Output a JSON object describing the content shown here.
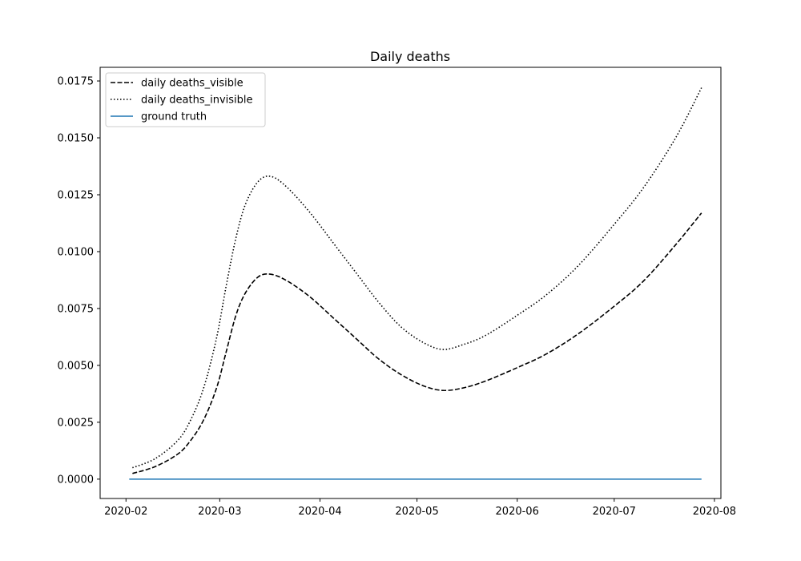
{
  "chart_data": {
    "type": "line",
    "title": "Daily deaths",
    "xlabel": "",
    "ylabel": "",
    "x_axis": {
      "type": "date",
      "range": [
        "2020-01-24",
        "2020-08-03"
      ],
      "ticks": [
        {
          "date": "2020-02-01",
          "label": "2020-02"
        },
        {
          "date": "2020-03-01",
          "label": "2020-03"
        },
        {
          "date": "2020-04-01",
          "label": "2020-04"
        },
        {
          "date": "2020-05-01",
          "label": "2020-05"
        },
        {
          "date": "2020-06-01",
          "label": "2020-06"
        },
        {
          "date": "2020-07-01",
          "label": "2020-07"
        },
        {
          "date": "2020-08-01",
          "label": "2020-08"
        }
      ]
    },
    "y_axis": {
      "range": [
        -0.00085,
        0.0181
      ],
      "ticks": [
        {
          "value": 0,
          "label": "0.0000"
        },
        {
          "value": 0.0025,
          "label": "0.0025"
        },
        {
          "value": 0.005,
          "label": "0.0050"
        },
        {
          "value": 0.0075,
          "label": "0.0075"
        },
        {
          "value": 0.01,
          "label": "0.0100"
        },
        {
          "value": 0.0125,
          "label": "0.0125"
        },
        {
          "value": 0.015,
          "label": "0.0150"
        },
        {
          "value": 0.0175,
          "label": "0.0175"
        }
      ]
    },
    "grid": false,
    "legend_position": "top-left",
    "series": [
      {
        "name": "daily deaths_visible",
        "color": "#000000",
        "style": "dashed",
        "points": [
          [
            "2020-02-03",
            0.00025
          ],
          [
            "2020-02-10",
            0.00055
          ],
          [
            "2020-02-17",
            0.0011
          ],
          [
            "2020-02-21",
            0.0017
          ],
          [
            "2020-02-25",
            0.0026
          ],
          [
            "2020-02-29",
            0.004
          ],
          [
            "2020-03-03",
            0.0056
          ],
          [
            "2020-03-06",
            0.0072
          ],
          [
            "2020-03-09",
            0.0082
          ],
          [
            "2020-03-13",
            0.0089
          ],
          [
            "2020-03-17",
            0.009
          ],
          [
            "2020-03-22",
            0.0087
          ],
          [
            "2020-03-29",
            0.008
          ],
          [
            "2020-04-05",
            0.0071
          ],
          [
            "2020-04-12",
            0.0062
          ],
          [
            "2020-04-19",
            0.0053
          ],
          [
            "2020-04-26",
            0.0046
          ],
          [
            "2020-05-03",
            0.0041
          ],
          [
            "2020-05-09",
            0.0039
          ],
          [
            "2020-05-15",
            0.004
          ],
          [
            "2020-05-22",
            0.0043
          ],
          [
            "2020-06-01",
            0.0049
          ],
          [
            "2020-06-10",
            0.0055
          ],
          [
            "2020-06-20",
            0.0064
          ],
          [
            "2020-07-01",
            0.0076
          ],
          [
            "2020-07-10",
            0.0087
          ],
          [
            "2020-07-20",
            0.0103
          ],
          [
            "2020-07-28",
            0.0117
          ]
        ]
      },
      {
        "name": "daily deaths_invisible",
        "color": "#000000",
        "style": "dotted",
        "points": [
          [
            "2020-02-03",
            0.0005
          ],
          [
            "2020-02-10",
            0.0009
          ],
          [
            "2020-02-17",
            0.0017
          ],
          [
            "2020-02-21",
            0.0026
          ],
          [
            "2020-02-25",
            0.004
          ],
          [
            "2020-02-29",
            0.0062
          ],
          [
            "2020-03-03",
            0.0085
          ],
          [
            "2020-03-06",
            0.0106
          ],
          [
            "2020-03-09",
            0.0121
          ],
          [
            "2020-03-13",
            0.0131
          ],
          [
            "2020-03-17",
            0.0133
          ],
          [
            "2020-03-22",
            0.0128
          ],
          [
            "2020-03-29",
            0.0117
          ],
          [
            "2020-04-05",
            0.0104
          ],
          [
            "2020-04-12",
            0.0091
          ],
          [
            "2020-04-19",
            0.0078
          ],
          [
            "2020-04-26",
            0.0067
          ],
          [
            "2020-05-03",
            0.006
          ],
          [
            "2020-05-09",
            0.0057
          ],
          [
            "2020-05-15",
            0.0059
          ],
          [
            "2020-05-22",
            0.0063
          ],
          [
            "2020-06-01",
            0.0072
          ],
          [
            "2020-06-10",
            0.0081
          ],
          [
            "2020-06-20",
            0.0094
          ],
          [
            "2020-07-01",
            0.0112
          ],
          [
            "2020-07-10",
            0.0128
          ],
          [
            "2020-07-20",
            0.015
          ],
          [
            "2020-07-28",
            0.0172
          ]
        ]
      },
      {
        "name": "ground truth",
        "color": "#1f77b4",
        "style": "solid",
        "points": [
          [
            "2020-02-02",
            0
          ],
          [
            "2020-07-28",
            0
          ]
        ]
      }
    ]
  }
}
